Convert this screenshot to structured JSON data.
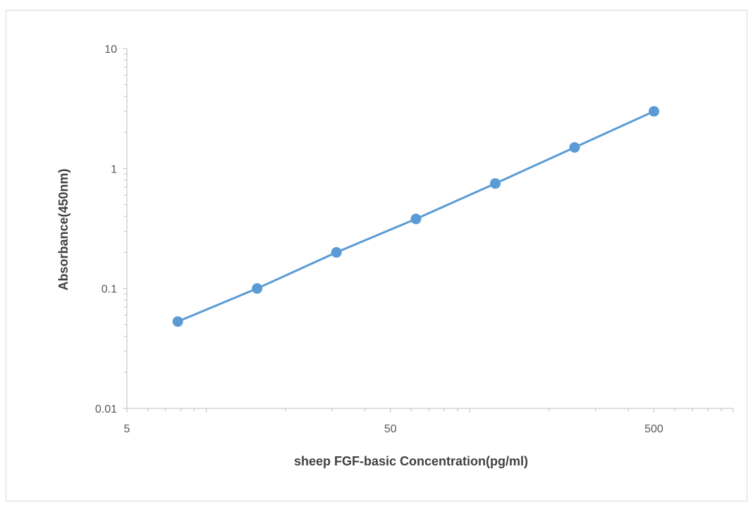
{
  "chart_data": {
    "type": "line",
    "title": "",
    "xlabel": "sheep FGF-basic Concentration(pg/ml)",
    "ylabel": "Absorbance(450nm)",
    "x_scale": "log",
    "y_scale": "log",
    "xlim": [
      5,
      1000
    ],
    "ylim": [
      0.01,
      10
    ],
    "x_ticks": [
      5,
      50,
      500
    ],
    "x_tick_labels": [
      "5",
      "50",
      "500"
    ],
    "y_ticks": [
      0.01,
      0.1,
      1,
      10
    ],
    "y_tick_labels": [
      "0.01",
      "0.1",
      "1",
      "10"
    ],
    "grid": false,
    "legend": "none",
    "series": [
      {
        "color": "#5b9bd5",
        "marker": "circle",
        "x": [
          7.8,
          15.6,
          31.2,
          62.5,
          125,
          250,
          500
        ],
        "y": [
          0.053,
          0.1,
          0.2,
          0.38,
          0.75,
          1.5,
          3.0
        ]
      }
    ],
    "axis_color": "#bfbfbf"
  }
}
